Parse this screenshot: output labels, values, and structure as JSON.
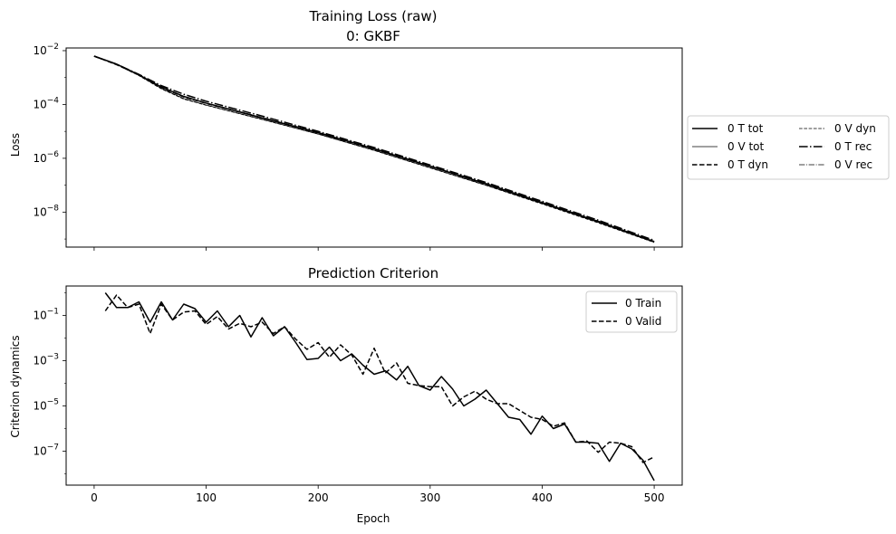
{
  "chart_data": [
    {
      "type": "line",
      "title": "Training Loss (raw)",
      "subtitle": "0: GKBF",
      "ylabel": "Loss",
      "xlabel": "",
      "yscale": "log",
      "xlim": [
        -25,
        525
      ],
      "ylim_exponent": [
        -9.3,
        -1.9
      ],
      "xticks": [
        0,
        100,
        200,
        300,
        400,
        500
      ],
      "yticks": [
        {
          "exp": -2,
          "base": "10",
          "sup": "−2"
        },
        {
          "exp": -4,
          "base": "10",
          "sup": "−4"
        },
        {
          "exp": -6,
          "base": "10",
          "sup": "−6"
        },
        {
          "exp": -8,
          "base": "10",
          "sup": "−8"
        }
      ],
      "grid": false,
      "legend": {
        "placement": "outside-right",
        "ncol": 2,
        "entries": [
          {
            "label": "0 T tot",
            "style": "solid-thick"
          },
          {
            "label": "0 V tot",
            "style": "solid-thin"
          },
          {
            "label": "0 T dyn",
            "style": "dashed-thick"
          },
          {
            "label": "0 V dyn",
            "style": "dashed-thin"
          },
          {
            "label": "0 T rec",
            "style": "dashdot-thick"
          },
          {
            "label": "0 V rec",
            "style": "dashdot-thin"
          }
        ]
      },
      "x": [
        0,
        20,
        40,
        60,
        80,
        100,
        150,
        200,
        250,
        300,
        350,
        400,
        450,
        500
      ],
      "series": [
        {
          "name": "0 T tot",
          "style": "solid-thick",
          "log10_values": [
            -2.2,
            -2.5,
            -2.9,
            -3.35,
            -3.7,
            -3.95,
            -4.5,
            -5.05,
            -5.65,
            -6.3,
            -6.95,
            -7.65,
            -8.35,
            -9.1
          ]
        },
        {
          "name": "0 V tot",
          "style": "solid-thin",
          "log10_values": [
            -2.2,
            -2.5,
            -2.92,
            -3.4,
            -3.78,
            -4.02,
            -4.55,
            -5.1,
            -5.7,
            -6.35,
            -7.0,
            -7.68,
            -8.38,
            -9.12
          ]
        },
        {
          "name": "0 T dyn",
          "style": "dashed-thick",
          "log10_values": [
            -2.2,
            -2.52,
            -2.9,
            -3.36,
            -3.72,
            -3.96,
            -4.5,
            -5.06,
            -5.66,
            -6.3,
            -6.96,
            -7.66,
            -8.36,
            -9.1
          ]
        },
        {
          "name": "0 V dyn",
          "style": "dashed-thin",
          "log10_values": [
            -2.2,
            -2.52,
            -2.93,
            -3.42,
            -3.8,
            -4.03,
            -4.56,
            -5.1,
            -5.71,
            -6.36,
            -7.01,
            -7.7,
            -8.4,
            -9.13
          ]
        },
        {
          "name": "0 T rec",
          "style": "dashdot-thick",
          "log10_values": [
            -2.21,
            -2.5,
            -2.88,
            -3.3,
            -3.62,
            -3.88,
            -4.43,
            -5.0,
            -5.6,
            -6.25,
            -6.9,
            -7.6,
            -8.3,
            -9.05
          ]
        },
        {
          "name": "0 V rec",
          "style": "dashdot-thin",
          "log10_values": [
            -2.21,
            -2.51,
            -2.9,
            -3.35,
            -3.7,
            -3.94,
            -4.48,
            -5.03,
            -5.63,
            -6.28,
            -6.93,
            -7.63,
            -8.33,
            -9.08
          ]
        }
      ]
    },
    {
      "type": "line",
      "title": "Prediction Criterion",
      "xlabel": "Epoch",
      "ylabel": "Criterion dynamics",
      "yscale": "log",
      "xlim": [
        -25,
        525
      ],
      "ylim_exponent": [
        -8.5,
        0.3
      ],
      "xticks": [
        0,
        100,
        200,
        300,
        400,
        500
      ],
      "yticks": [
        {
          "exp": -1,
          "base": "10",
          "sup": "−1"
        },
        {
          "exp": -3,
          "base": "10",
          "sup": "−3"
        },
        {
          "exp": -5,
          "base": "10",
          "sup": "−5"
        },
        {
          "exp": -7,
          "base": "10",
          "sup": "−7"
        }
      ],
      "grid": false,
      "legend": {
        "placement": "upper-right",
        "entries": [
          {
            "label": "0 Train",
            "style": "solid-thick"
          },
          {
            "label": "0 Valid",
            "style": "dashed-thick"
          }
        ]
      },
      "x": [
        10,
        20,
        30,
        40,
        50,
        60,
        70,
        80,
        90,
        100,
        110,
        120,
        130,
        140,
        150,
        160,
        170,
        180,
        190,
        200,
        210,
        220,
        230,
        240,
        250,
        260,
        270,
        280,
        290,
        300,
        310,
        320,
        330,
        340,
        350,
        360,
        370,
        380,
        390,
        400,
        410,
        420,
        430,
        440,
        450,
        460,
        470,
        480,
        490,
        500
      ],
      "series": [
        {
          "name": "0 Train",
          "style": "solid-thick",
          "log10_values": [
            0.0,
            -0.65,
            -0.65,
            -0.4,
            -1.3,
            -0.4,
            -1.2,
            -0.5,
            -0.7,
            -1.3,
            -0.8,
            -1.5,
            -1.0,
            -1.95,
            -1.1,
            -1.9,
            -1.5,
            -2.2,
            -2.95,
            -2.9,
            -2.4,
            -3.0,
            -2.7,
            -3.2,
            -3.6,
            -3.45,
            -3.85,
            -3.25,
            -4.1,
            -4.3,
            -3.7,
            -4.25,
            -5.0,
            -4.7,
            -4.3,
            -4.9,
            -5.5,
            -5.6,
            -6.25,
            -5.45,
            -6.0,
            -5.8,
            -6.6,
            -6.6,
            -6.65,
            -7.45,
            -6.65,
            -6.9,
            -7.4,
            -8.3
          ]
        },
        {
          "name": "0 Valid",
          "style": "dashed-thick",
          "log10_values": [
            -0.8,
            -0.1,
            -0.65,
            -0.5,
            -1.8,
            -0.5,
            -1.2,
            -0.85,
            -0.8,
            -1.4,
            -1.05,
            -1.6,
            -1.35,
            -1.5,
            -1.3,
            -1.8,
            -1.5,
            -2.05,
            -2.5,
            -2.2,
            -2.85,
            -2.3,
            -2.75,
            -3.6,
            -2.45,
            -3.55,
            -3.1,
            -4.0,
            -4.1,
            -4.15,
            -4.15,
            -5.0,
            -4.6,
            -4.35,
            -4.7,
            -4.9,
            -4.9,
            -5.2,
            -5.5,
            -5.6,
            -5.9,
            -5.75,
            -6.6,
            -6.55,
            -7.05,
            -6.6,
            -6.65,
            -6.8,
            -7.5,
            -7.25
          ]
        }
      ]
    }
  ]
}
